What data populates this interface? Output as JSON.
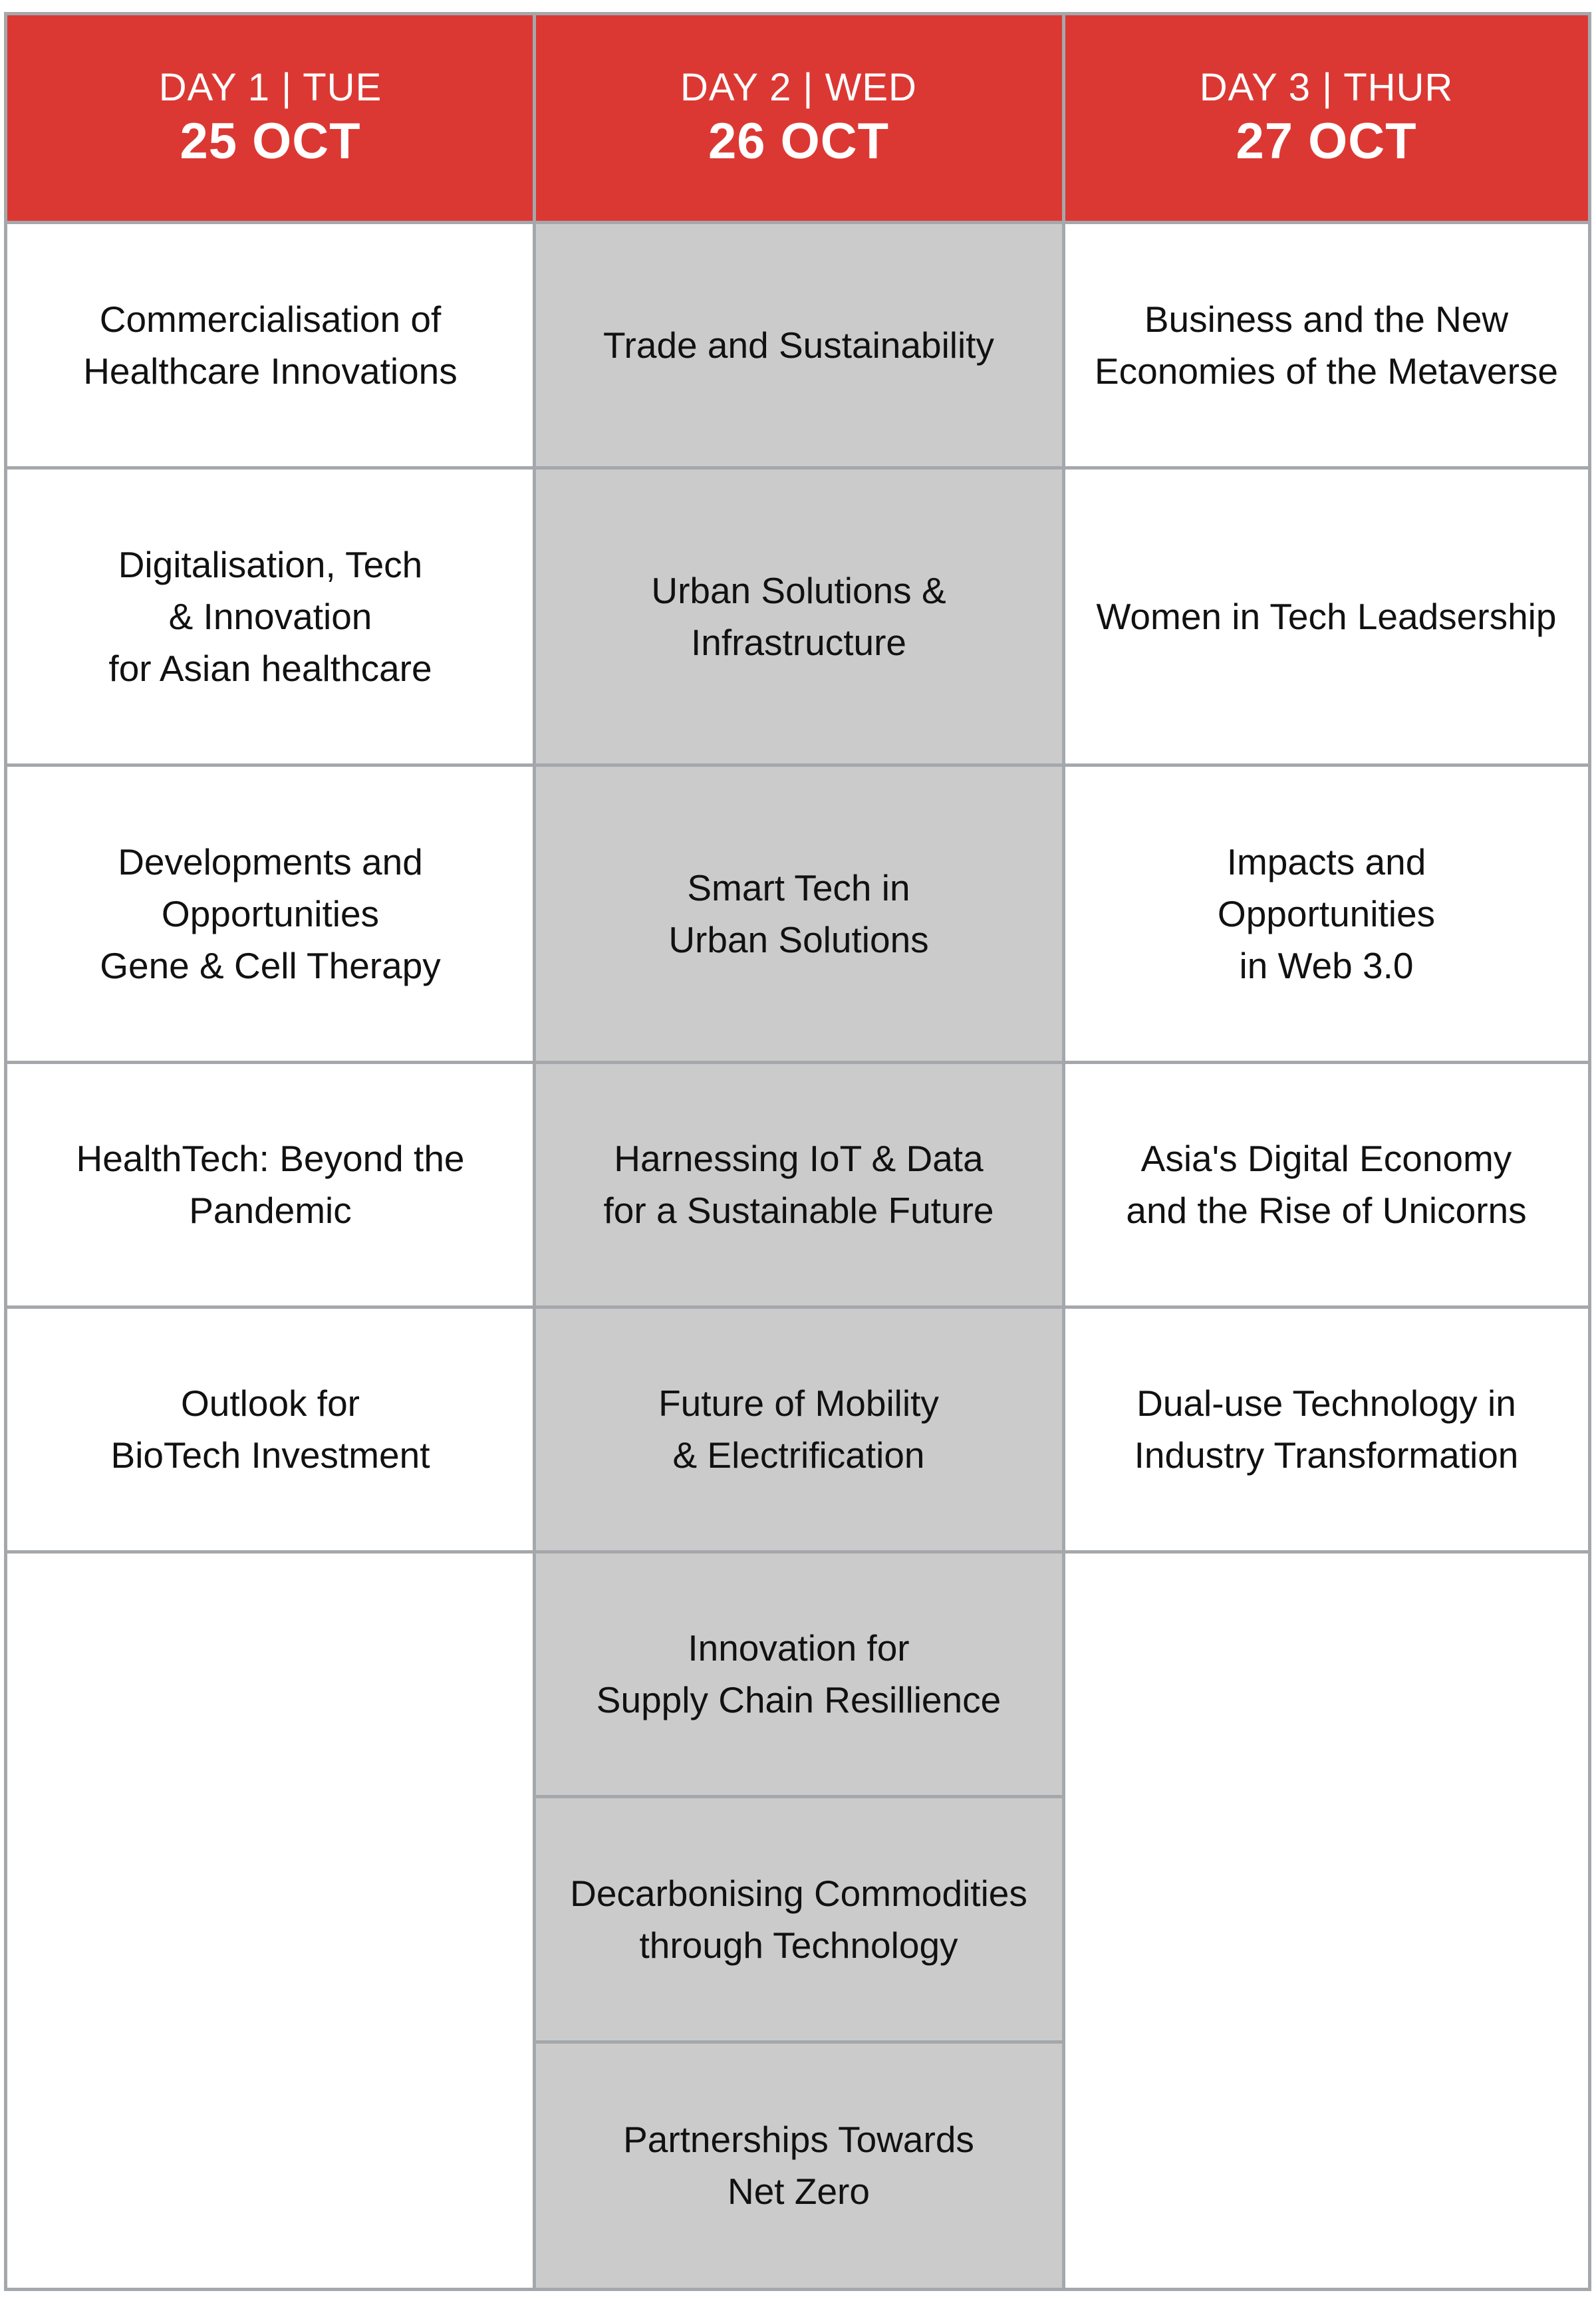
{
  "colors": {
    "header_bg": "#dc3833",
    "header_text": "#ffffff",
    "day2_bg": "#cbcbcb",
    "cell_bg": "#ffffff",
    "grid": "#a4a8ac",
    "text": "#111111"
  },
  "days": [
    {
      "day": "DAY 1 | TUE",
      "date": "25 OCT",
      "sessions": [
        "Commercialisation of\nHealthcare Innovations",
        "Digitalisation, Tech\n& Innovation\nfor Asian healthcare",
        "Developments and\nOpportunities\nGene & Cell Therapy",
        "HealthTech: Beyond the\nPandemic",
        "Outlook for\nBioTech Investment"
      ]
    },
    {
      "day": "DAY 2 | WED",
      "date": "26 OCT",
      "sessions": [
        "Trade and Sustainability",
        "Urban Solutions &\nInfrastructure",
        "Smart Tech in\nUrban Solutions",
        "Harnessing IoT & Data\nfor a Sustainable Future",
        "Future of Mobility\n& Electrification",
        "Innovation for\nSupply Chain Resillience",
        "Decarbonising Commodities\nthrough Technology",
        "Partnerships Towards\nNet Zero"
      ]
    },
    {
      "day": "DAY 3 | THUR",
      "date": "27 OCT",
      "sessions": [
        "Business and the New\nEconomies of the Metaverse",
        "Women in Tech Leadsership",
        "Impacts and\nOpportunities\nin Web 3.0",
        "Asia's Digital Economy\nand the Rise of Unicorns",
        "Dual-use Technology in\nIndustry Transformation"
      ]
    }
  ]
}
